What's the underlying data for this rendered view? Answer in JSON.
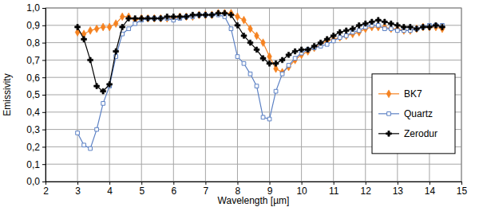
{
  "chart_data": {
    "type": "line",
    "x_label": "Wavelength [µm]",
    "y_label": "Emissivity",
    "x": [
      3.0,
      3.2,
      3.4,
      3.6,
      3.8,
      4.0,
      4.2,
      4.4,
      4.6,
      4.8,
      5.0,
      5.2,
      5.4,
      5.6,
      5.8,
      6.0,
      6.2,
      6.4,
      6.6,
      6.8,
      7.0,
      7.2,
      7.4,
      7.6,
      7.8,
      8.0,
      8.2,
      8.4,
      8.6,
      8.8,
      9.0,
      9.2,
      9.4,
      9.6,
      9.8,
      10.0,
      10.2,
      10.4,
      10.6,
      10.8,
      11.0,
      11.2,
      11.4,
      11.6,
      11.8,
      12.0,
      12.2,
      12.4,
      12.6,
      12.8,
      13.0,
      13.2,
      13.4,
      13.6,
      13.8,
      14.0,
      14.2,
      14.4
    ],
    "series": [
      {
        "name": "BK7",
        "color": "#f58220",
        "marker": "diamond",
        "line_style": "solid",
        "values": [
          0.86,
          0.85,
          0.87,
          0.88,
          0.89,
          0.89,
          0.91,
          0.95,
          0.95,
          0.93,
          0.94,
          0.94,
          0.94,
          0.94,
          0.94,
          0.94,
          0.95,
          0.95,
          0.95,
          0.96,
          0.96,
          0.96,
          0.97,
          0.97,
          0.97,
          0.95,
          0.93,
          0.88,
          0.84,
          0.8,
          0.72,
          0.65,
          0.63,
          0.66,
          0.7,
          0.73,
          0.75,
          0.77,
          0.79,
          0.81,
          0.82,
          0.83,
          0.84,
          0.85,
          0.86,
          0.88,
          0.89,
          0.89,
          0.89,
          0.88,
          0.88,
          0.87,
          0.87,
          0.88,
          0.89,
          0.89,
          0.89,
          0.88
        ]
      },
      {
        "name": "Quartz",
        "color": "#5b80c4",
        "marker": "square",
        "line_style": "solid",
        "values": [
          0.28,
          0.21,
          0.19,
          0.3,
          0.45,
          0.55,
          0.72,
          0.85,
          0.88,
          0.91,
          0.93,
          0.94,
          0.94,
          0.94,
          0.94,
          0.93,
          0.94,
          0.95,
          0.95,
          0.96,
          0.96,
          0.96,
          0.96,
          0.95,
          0.88,
          0.72,
          0.68,
          0.62,
          0.55,
          0.37,
          0.36,
          0.52,
          0.62,
          0.67,
          0.71,
          0.74,
          0.76,
          0.77,
          0.78,
          0.79,
          0.81,
          0.83,
          0.84,
          0.86,
          0.87,
          0.89,
          0.9,
          0.9,
          0.88,
          0.88,
          0.87,
          0.87,
          0.87,
          0.88,
          0.89,
          0.9,
          0.9,
          0.9
        ]
      },
      {
        "name": "Zerodur",
        "color": "#000000",
        "marker": "cross",
        "line_style": "solid",
        "values": [
          0.89,
          0.82,
          0.7,
          0.55,
          0.52,
          0.56,
          0.75,
          0.89,
          0.94,
          0.94,
          0.94,
          0.94,
          0.94,
          0.94,
          0.95,
          0.95,
          0.95,
          0.95,
          0.96,
          0.96,
          0.96,
          0.96,
          0.97,
          0.97,
          0.96,
          0.9,
          0.84,
          0.8,
          0.76,
          0.71,
          0.68,
          0.68,
          0.7,
          0.73,
          0.75,
          0.76,
          0.76,
          0.78,
          0.8,
          0.82,
          0.84,
          0.86,
          0.87,
          0.88,
          0.9,
          0.91,
          0.92,
          0.93,
          0.92,
          0.91,
          0.9,
          0.89,
          0.89,
          0.88,
          0.89,
          0.89,
          0.9,
          0.89
        ]
      }
    ],
    "xlim": [
      2,
      15
    ],
    "xticks": [
      2,
      3,
      4,
      5,
      6,
      7,
      8,
      9,
      10,
      11,
      12,
      13,
      14,
      15
    ],
    "ylim": [
      0,
      1
    ],
    "yticks": [
      {
        "value": 0,
        "label": "0,0"
      },
      {
        "value": 0.1,
        "label": "0,1"
      },
      {
        "value": 0.2,
        "label": "0,2"
      },
      {
        "value": 0.3,
        "label": "0,3"
      },
      {
        "value": 0.4,
        "label": "0,4"
      },
      {
        "value": 0.5,
        "label": "0,5"
      },
      {
        "value": 0.6,
        "label": "0,6"
      },
      {
        "value": 0.7,
        "label": "0,7"
      },
      {
        "value": 0.8,
        "label": "0,8"
      },
      {
        "value": 0.9,
        "label": "0,9"
      },
      {
        "value": 1,
        "label": "1,0"
      }
    ],
    "grid": true,
    "legend": "right"
  }
}
